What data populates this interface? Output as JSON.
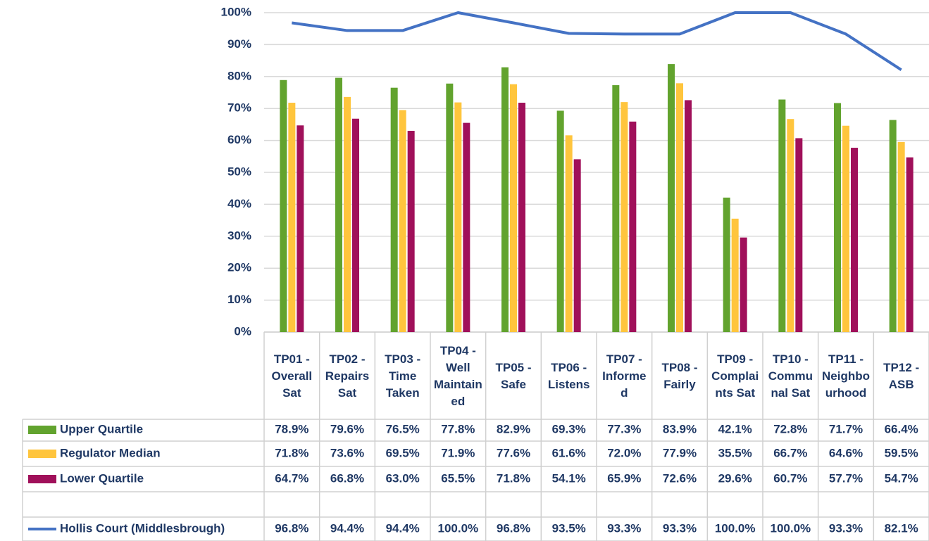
{
  "chart_data": {
    "type": "bar",
    "categories": [
      "TP01 - Overall Sat",
      "TP02 - Repairs Sat",
      "TP03 - Time Taken",
      "TP04 - Well Maintained",
      "TP05 - Safe",
      "TP06 - Listens",
      "TP07 - Informed",
      "TP08 - Fairly",
      "TP09 - Complaints Sat",
      "TP10 - Communal Sat",
      "TP11 - Neighbourhood",
      "TP12 - ASB"
    ],
    "series": [
      {
        "name": "Upper Quartile",
        "color": "#62a32e",
        "values": [
          78.9,
          79.6,
          76.5,
          77.8,
          82.9,
          69.3,
          77.3,
          83.9,
          42.1,
          72.8,
          71.7,
          66.4
        ],
        "value_labels": [
          "78.9%",
          "79.6%",
          "76.5%",
          "77.8%",
          "82.9%",
          "69.3%",
          "77.3%",
          "83.9%",
          "42.1%",
          "72.8%",
          "71.7%",
          "66.4%"
        ]
      },
      {
        "name": "Regulator Median",
        "color": "#ffc53d",
        "values": [
          71.8,
          73.6,
          69.5,
          71.9,
          77.6,
          61.6,
          72.0,
          77.9,
          35.5,
          66.7,
          64.6,
          59.5
        ],
        "value_labels": [
          "71.8%",
          "73.6%",
          "69.5%",
          "71.9%",
          "77.6%",
          "61.6%",
          "72.0%",
          "77.9%",
          "35.5%",
          "66.7%",
          "64.6%",
          "59.5%"
        ]
      },
      {
        "name": "Lower Quartile",
        "color": "#a0105a",
        "values": [
          64.7,
          66.8,
          63.0,
          65.5,
          71.8,
          54.1,
          65.9,
          72.6,
          29.6,
          60.7,
          57.7,
          54.7
        ],
        "value_labels": [
          "64.7%",
          "66.8%",
          "63.0%",
          "65.5%",
          "71.8%",
          "54.1%",
          "65.9%",
          "72.6%",
          "29.6%",
          "60.7%",
          "57.7%",
          "54.7%"
        ]
      },
      {
        "name": "Hollis Court (Middlesbrough)",
        "type": "line",
        "color": "#4472c4",
        "values": [
          96.8,
          94.4,
          94.4,
          100.0,
          96.8,
          93.5,
          93.3,
          93.3,
          100.0,
          100.0,
          93.3,
          82.1
        ],
        "value_labels": [
          "96.8%",
          "94.4%",
          "94.4%",
          "100.0%",
          "96.8%",
          "93.5%",
          "93.3%",
          "93.3%",
          "100.0%",
          "100.0%",
          "93.3%",
          "82.1%"
        ]
      }
    ],
    "ylim": [
      0,
      100
    ],
    "yticks": [
      {
        "value": 0,
        "label": "0%"
      },
      {
        "value": 10,
        "label": "10%"
      },
      {
        "value": 20,
        "label": "20%"
      },
      {
        "value": 30,
        "label": "30%"
      },
      {
        "value": 40,
        "label": "40%"
      },
      {
        "value": 50,
        "label": "50%"
      },
      {
        "value": 60,
        "label": "60%"
      },
      {
        "value": 70,
        "label": "70%"
      },
      {
        "value": 80,
        "label": "80%"
      },
      {
        "value": 90,
        "label": "90%"
      },
      {
        "value": 100,
        "label": "100%"
      }
    ],
    "grid": true
  }
}
